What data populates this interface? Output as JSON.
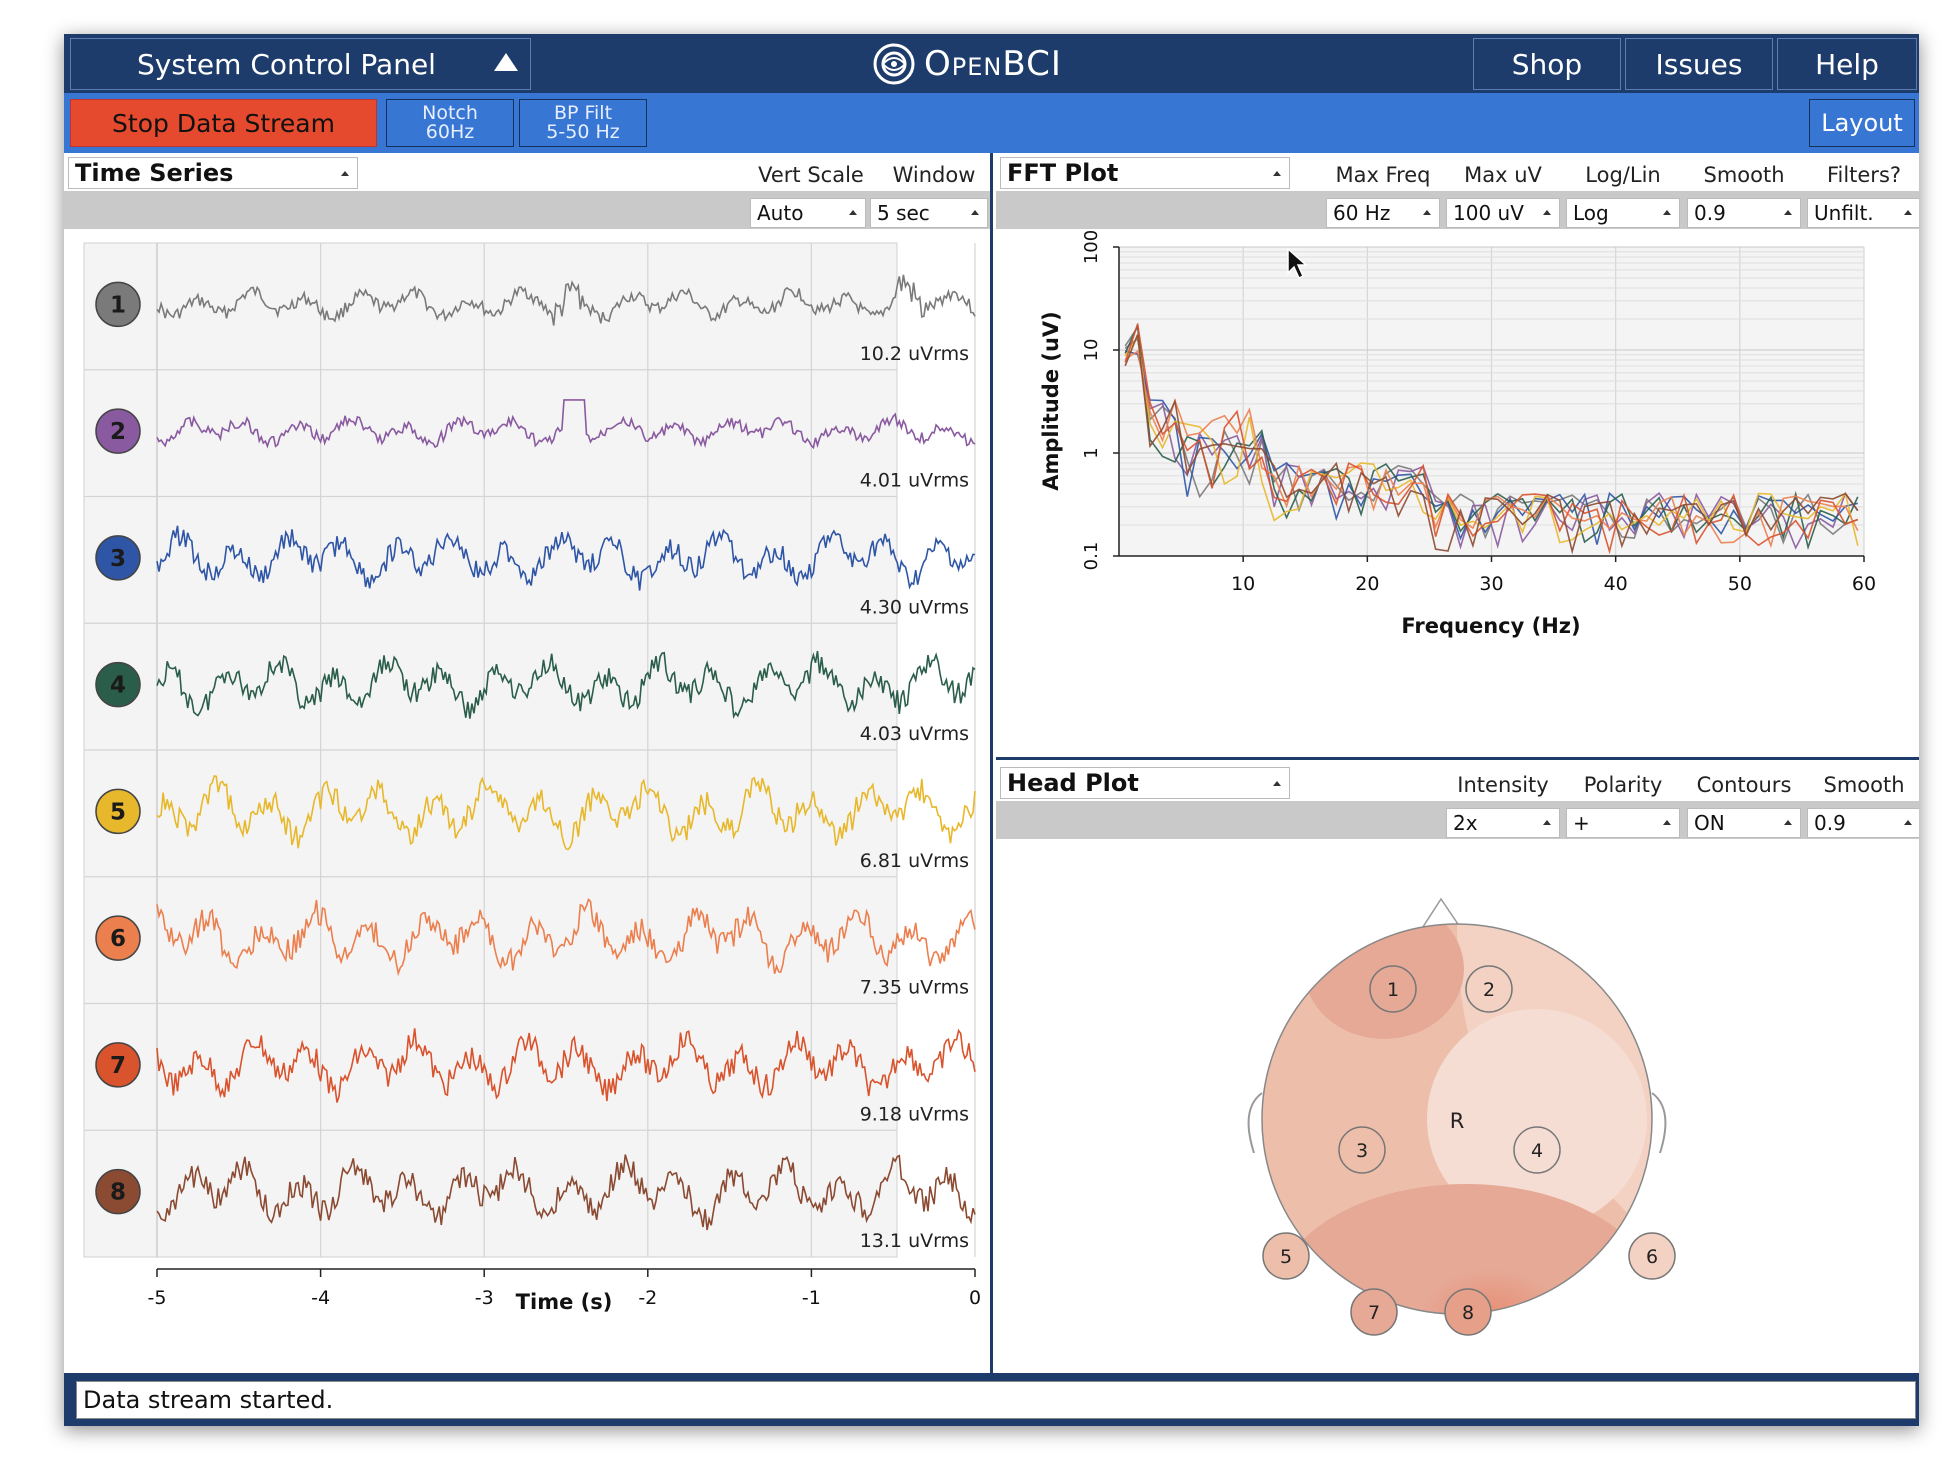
{
  "topbar": {
    "system_control_panel": "System Control Panel",
    "logo_text": "OpenBCI",
    "shop": "Shop",
    "issues": "Issues",
    "help": "Help"
  },
  "controls": {
    "stop_stream": "Stop Data Stream",
    "notch_line1": "Notch",
    "notch_line2": "60Hz",
    "bp_line1": "BP Filt",
    "bp_line2": "5-50 Hz",
    "layout": "Layout",
    "stop_color": "#e54a2e"
  },
  "time_series": {
    "title": "Time Series",
    "vert_scale_label": "Vert Scale",
    "window_label": "Window",
    "vert_scale_value": "Auto",
    "window_value": "5 sec",
    "xlabel": "Time (s)",
    "xticks": [
      "-5",
      "-4",
      "-3",
      "-2",
      "-1",
      "0"
    ],
    "channels": [
      {
        "num": "1",
        "rms": "10.2 uVrms",
        "color": "#7a7a7a"
      },
      {
        "num": "2",
        "rms": "4.01 uVrms",
        "color": "#8a5aa0"
      },
      {
        "num": "3",
        "rms": "4.30 uVrms",
        "color": "#2f56a6"
      },
      {
        "num": "4",
        "rms": "4.03 uVrms",
        "color": "#2b5e4a"
      },
      {
        "num": "5",
        "rms": "6.81 uVrms",
        "color": "#e8b82c"
      },
      {
        "num": "6",
        "rms": "7.35 uVrms",
        "color": "#ec7f4e"
      },
      {
        "num": "7",
        "rms": "9.18 uVrms",
        "color": "#d9532d"
      },
      {
        "num": "8",
        "rms": "13.1 uVrms",
        "color": "#8b4a32"
      }
    ]
  },
  "fft": {
    "title": "FFT Plot",
    "options": [
      {
        "label": "Max Freq",
        "value": "60 Hz"
      },
      {
        "label": "Max uV",
        "value": "100 uV"
      },
      {
        "label": "Log/Lin",
        "value": "Log"
      },
      {
        "label": "Smooth",
        "value": "0.9"
      },
      {
        "label": "Filters?",
        "value": "Unfilt."
      }
    ],
    "xlabel": "Frequency (Hz)",
    "ylabel": "Amplitude (uV)",
    "xticks": [
      "10",
      "20",
      "30",
      "40",
      "50",
      "60"
    ],
    "yticks": [
      "0.1",
      "1",
      "10",
      "100"
    ]
  },
  "head_plot": {
    "title": "Head Plot",
    "options": [
      {
        "label": "Intensity",
        "value": "2x"
      },
      {
        "label": "Polarity",
        "value": "+"
      },
      {
        "label": "Contours",
        "value": "ON"
      },
      {
        "label": "Smooth",
        "value": "0.9"
      }
    ],
    "reference_label": "R",
    "electrodes": [
      "1",
      "2",
      "3",
      "4",
      "5",
      "6",
      "7",
      "8"
    ]
  },
  "status": {
    "message": "Data stream started."
  }
}
